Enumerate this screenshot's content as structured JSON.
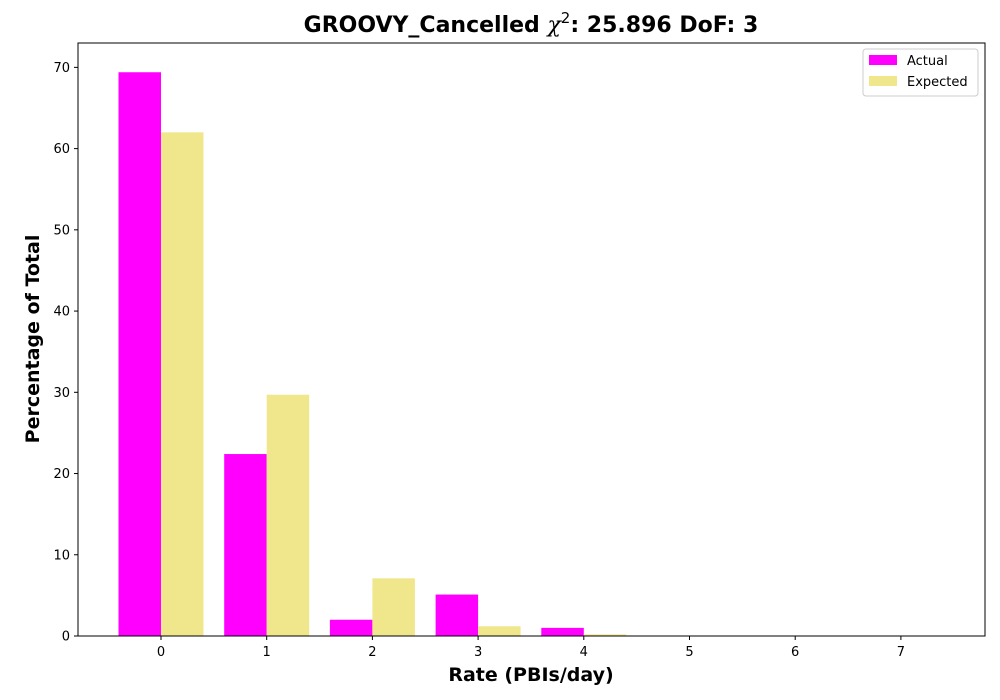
{
  "chart_data": {
    "type": "bar",
    "title_prefix": "GROOVY_Cancelled ",
    "title_chi": "χ",
    "title_sup": "2",
    "title_suffix": ": 25.896 DoF: 3",
    "xlabel": "Rate (PBIs/day)",
    "ylabel": "Percentage of Total",
    "categories": [
      "0",
      "1",
      "2",
      "3",
      "4",
      "5",
      "6",
      "7"
    ],
    "ylim": [
      0,
      73
    ],
    "yticks": [
      "0",
      "10",
      "20",
      "30",
      "40",
      "50",
      "60",
      "70"
    ],
    "legend_position": "top-right",
    "series": [
      {
        "name": "Actual",
        "color": "#ff00ff",
        "values": [
          69.4,
          22.4,
          2.0,
          5.1,
          1.0,
          0,
          0,
          0
        ]
      },
      {
        "name": "Expected",
        "color": "#f0e68c",
        "values": [
          62.0,
          29.7,
          7.1,
          1.2,
          0.2,
          0,
          0,
          0
        ]
      }
    ]
  }
}
